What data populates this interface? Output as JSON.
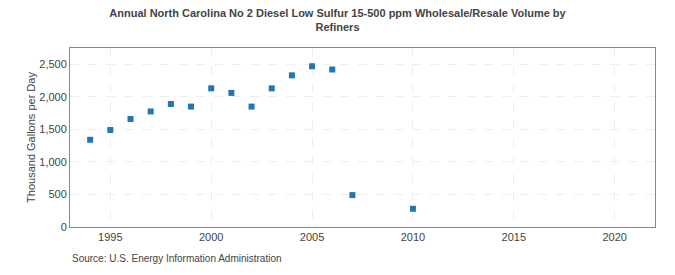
{
  "chart_data": {
    "type": "scatter",
    "title": "Annual North Carolina No 2 Diesel Low Sulfur 15-500 ppm Wholesale/Resale Volume by\nRefiners",
    "y_label": "Thousand Gallons per Day",
    "annotations": [
      "Source: U.S. Energy Information Administration"
    ],
    "x": [
      1994,
      1995,
      1996,
      1997,
      1998,
      1999,
      2000,
      2001,
      2002,
      2003,
      2004,
      2005,
      2006,
      2007,
      2010
    ],
    "values": [
      1340,
      1490,
      1660,
      1775,
      1890,
      1850,
      2130,
      2060,
      1850,
      2130,
      2330,
      2470,
      2420,
      490,
      280
    ],
    "marker": "square",
    "xlim": [
      1993,
      2022
    ],
    "xticks": [
      1995,
      2000,
      2005,
      2010,
      2015,
      2020
    ],
    "ylim": [
      0,
      2750
    ],
    "yticks": [
      0,
      500,
      {
        "value": 1000,
        "label": "1,000"
      },
      {
        "value": 1500,
        "label": "1,500"
      },
      {
        "value": 2000,
        "label": "2,000"
      },
      {
        "value": 2500,
        "label": "2,500"
      }
    ],
    "grid": true
  }
}
